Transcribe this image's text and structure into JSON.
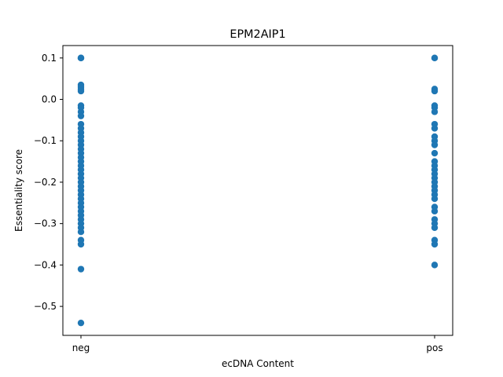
{
  "chart_data": {
    "type": "scatter",
    "title": "EPM2AIP1",
    "xlabel": "ecDNA Content",
    "ylabel": "Essentiality score",
    "categories": [
      "neg",
      "pos"
    ],
    "ylim": [
      -0.57,
      0.13
    ],
    "yticks": [
      0.1,
      0.0,
      -0.1,
      -0.2,
      -0.3,
      -0.4,
      -0.5
    ],
    "ytick_labels": [
      "0.1",
      "0.0",
      "−0.1",
      "−0.2",
      "−0.3",
      "−0.4",
      "−0.5"
    ],
    "grid": false,
    "marker_color": "#1f77b4",
    "series": [
      {
        "category": "neg",
        "values": [
          0.1,
          0.1,
          0.1,
          0.035,
          0.03,
          0.025,
          0.02,
          -0.015,
          -0.02,
          -0.03,
          -0.04,
          -0.06,
          -0.07,
          -0.08,
          -0.09,
          -0.1,
          -0.11,
          -0.12,
          -0.13,
          -0.14,
          -0.15,
          -0.16,
          -0.17,
          -0.18,
          -0.19,
          -0.2,
          -0.21,
          -0.22,
          -0.23,
          -0.24,
          -0.25,
          -0.26,
          -0.27,
          -0.28,
          -0.29,
          -0.3,
          -0.31,
          -0.32,
          -0.34,
          -0.35,
          -0.41,
          -0.54
        ]
      },
      {
        "category": "pos",
        "values": [
          0.1,
          0.1,
          0.025,
          0.02,
          -0.015,
          -0.02,
          -0.03,
          -0.06,
          -0.07,
          -0.09,
          -0.1,
          -0.11,
          -0.13,
          -0.15,
          -0.16,
          -0.17,
          -0.18,
          -0.19,
          -0.2,
          -0.21,
          -0.22,
          -0.23,
          -0.24,
          -0.26,
          -0.27,
          -0.29,
          -0.3,
          -0.31,
          -0.34,
          -0.35,
          -0.4
        ]
      }
    ]
  }
}
